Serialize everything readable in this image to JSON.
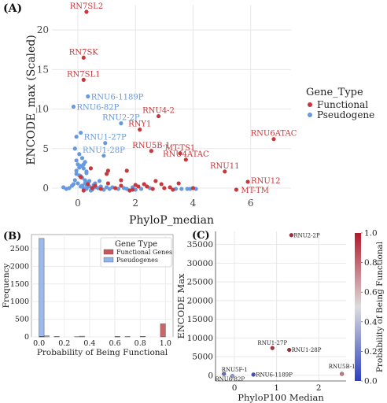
{
  "chart_data": [
    {
      "panel_label": "(A)",
      "type": "scatter",
      "xlabel": "PhyloP_median",
      "ylabel": "ENCODE_max (Scaled)",
      "xlim": [
        -0.9,
        7.4
      ],
      "ylim": [
        -0.9,
        23.2
      ],
      "xticks": [
        0,
        2,
        4,
        6
      ],
      "yticks": [
        0,
        5,
        10,
        15,
        20
      ],
      "grid": true,
      "legend": {
        "title": "Gene_Type",
        "position": "right",
        "entries": [
          {
            "name": "Functional",
            "color": "#c8373b"
          },
          {
            "name": "Pseudogene",
            "color": "#6699dd"
          }
        ]
      },
      "labels": [
        {
          "text": "RN7SL2",
          "x": 0.3,
          "y": 22.3,
          "series": "Functional"
        },
        {
          "text": "RN7SK",
          "x": 0.2,
          "y": 16.5,
          "series": "Functional"
        },
        {
          "text": "RN7SL1",
          "x": 0.2,
          "y": 13.7,
          "series": "Functional"
        },
        {
          "text": "RNU6-1189P",
          "x": 0.35,
          "y": 11.6,
          "series": "Pseudogene"
        },
        {
          "text": "RNU6-82P",
          "x": -0.15,
          "y": 10.3,
          "series": "Pseudogene"
        },
        {
          "text": "RNU4-2",
          "x": 2.8,
          "y": 9.1,
          "series": "Functional"
        },
        {
          "text": "RNU2-2P",
          "x": 1.5,
          "y": 8.2,
          "series": "Pseudogene"
        },
        {
          "text": "RNY1",
          "x": 2.15,
          "y": 7.4,
          "series": "Functional"
        },
        {
          "text": "RNU6ATAC",
          "x": 6.8,
          "y": 6.2,
          "series": "Functional"
        },
        {
          "text": "RNU1-27P",
          "x": 0.95,
          "y": 5.7,
          "series": "Pseudogene"
        },
        {
          "text": "RNU5B-1",
          "x": 2.55,
          "y": 4.7,
          "series": "Functional"
        },
        {
          "text": "MT-TS1",
          "x": 3.55,
          "y": 4.4,
          "series": "Functional"
        },
        {
          "text": "RNU1-28P",
          "x": 0.9,
          "y": 4.1,
          "series": "Pseudogene"
        },
        {
          "text": "RNU4ATAC",
          "x": 3.75,
          "y": 3.6,
          "series": "Functional"
        },
        {
          "text": "RNU11",
          "x": 5.1,
          "y": 2.1,
          "series": "Functional"
        },
        {
          "text": "RNU12",
          "x": 5.9,
          "y": 0.8,
          "series": "Functional"
        },
        {
          "text": "MT-TM",
          "x": 5.5,
          "y": -0.2,
          "series": "Functional"
        }
      ],
      "series": [
        {
          "name": "Functional",
          "color": "#c8373b",
          "points": [
            [
              0.3,
              22.3
            ],
            [
              0.2,
              16.5
            ],
            [
              0.2,
              13.7
            ],
            [
              2.8,
              9.1
            ],
            [
              2.15,
              7.4
            ],
            [
              6.8,
              6.2
            ],
            [
              2.55,
              4.7
            ],
            [
              3.55,
              4.4
            ],
            [
              3.75,
              3.6
            ],
            [
              5.1,
              2.1
            ],
            [
              5.9,
              0.8
            ],
            [
              5.5,
              -0.2
            ],
            [
              1.0,
              1.8
            ],
            [
              1.05,
              2.2
            ],
            [
              1.05,
              0.6
            ],
            [
              1.7,
              2.2
            ],
            [
              1.5,
              0.3
            ],
            [
              1.9,
              -0.2
            ],
            [
              2.1,
              0.2
            ],
            [
              2.3,
              0.5
            ],
            [
              2.6,
              -0.1
            ],
            [
              2.9,
              0.5
            ],
            [
              3.2,
              0.1
            ],
            [
              3.3,
              -0.2
            ],
            [
              0.35,
              0.5
            ],
            [
              0.45,
              2.5
            ],
            [
              0.1,
              1.4
            ],
            [
              0.5,
              0.0
            ],
            [
              0.8,
              -0.1
            ],
            [
              1.3,
              0.0
            ],
            [
              1.5,
              1.0
            ],
            [
              2.0,
              0.4
            ],
            [
              2.4,
              0.2
            ],
            [
              3.0,
              0.0
            ],
            [
              3.5,
              0.6
            ],
            [
              4.0,
              0.0
            ],
            [
              0.2,
              -0.3
            ],
            [
              0.6,
              0.3
            ],
            [
              1.8,
              -0.3
            ],
            [
              2.7,
              0.9
            ]
          ]
        },
        {
          "name": "Pseudogene",
          "color": "#6699dd",
          "points": [
            [
              0.35,
              11.6
            ],
            [
              -0.15,
              10.3
            ],
            [
              1.5,
              8.2
            ],
            [
              0.95,
              5.7
            ],
            [
              0.9,
              4.1
            ],
            [
              -0.05,
              6.5
            ],
            [
              0.1,
              7.0
            ],
            [
              -0.1,
              5.0
            ],
            [
              0.05,
              4.3
            ],
            [
              0.15,
              3.8
            ],
            [
              0.25,
              3.3
            ],
            [
              -0.05,
              3.5
            ],
            [
              0.1,
              2.8
            ],
            [
              0.2,
              2.5
            ],
            [
              0.3,
              1.9
            ],
            [
              -0.05,
              2.2
            ],
            [
              0.05,
              1.6
            ],
            [
              0.15,
              1.3
            ],
            [
              0.25,
              1.0
            ],
            [
              0.35,
              0.7
            ],
            [
              -0.1,
              1.0
            ],
            [
              0.0,
              0.6
            ],
            [
              0.1,
              0.2
            ],
            [
              0.2,
              0.0
            ],
            [
              0.3,
              -0.1
            ],
            [
              0.4,
              0.2
            ],
            [
              -0.2,
              0.3
            ],
            [
              -0.3,
              0.0
            ],
            [
              -0.4,
              -0.1
            ],
            [
              -0.5,
              0.1
            ],
            [
              0.5,
              -0.2
            ],
            [
              0.6,
              0.1
            ],
            [
              0.7,
              0.0
            ],
            [
              0.8,
              0.2
            ],
            [
              0.9,
              -0.2
            ],
            [
              1.0,
              0.1
            ],
            [
              1.1,
              -0.1
            ],
            [
              1.2,
              0.1
            ],
            [
              1.4,
              -0.1
            ],
            [
              1.6,
              0.0
            ],
            [
              1.7,
              -0.1
            ],
            [
              1.9,
              0.1
            ],
            [
              2.0,
              -0.2
            ],
            [
              2.2,
              -0.1
            ],
            [
              2.5,
              0.0
            ],
            [
              3.4,
              -0.1
            ],
            [
              3.6,
              -0.1
            ],
            [
              3.8,
              -0.1
            ],
            [
              3.9,
              -0.1
            ],
            [
              4.1,
              -0.1
            ],
            [
              0.45,
              -0.3
            ],
            [
              0.3,
              0.4
            ],
            [
              0.6,
              0.6
            ],
            [
              0.75,
              0.9
            ],
            [
              0.0,
              3.0
            ],
            [
              0.05,
              2.6
            ],
            [
              0.2,
              3.0
            ],
            [
              0.3,
              2.1
            ],
            [
              -0.05,
              1.8
            ],
            [
              0.1,
              1.5
            ],
            [
              0.4,
              0.9
            ],
            [
              0.55,
              0.4
            ],
            [
              -0.15,
              0.5
            ],
            [
              0.25,
              0.6
            ],
            [
              0.15,
              0.3
            ]
          ]
        }
      ]
    },
    {
      "panel_label": "(B)",
      "type": "bar",
      "xlabel": "Probability of Being Functional",
      "ylabel": "Frequency",
      "xlim": [
        -0.06,
        1.06
      ],
      "ylim": [
        0,
        2900
      ],
      "xticks": [
        0.0,
        0.2,
        0.4,
        0.6,
        0.8,
        1.0
      ],
      "xtick_labels": [
        "0.0",
        "0.2",
        "0.4",
        "0.6",
        "0.8",
        "1.0"
      ],
      "yticks": [
        0,
        500,
        1000,
        1500,
        2000,
        2500
      ],
      "grid": true,
      "bin_width": 0.04,
      "legend": {
        "title": "Gene Type",
        "position": "top-right",
        "entries": [
          {
            "name": "Functional Genes",
            "color": "#c8555a"
          },
          {
            "name": "Pseudogenes",
            "color": "#8fb3ea"
          }
        ]
      },
      "series": [
        {
          "name": "Pseudogenes",
          "color": "#8fb3ea",
          "bins": [
            [
              0.0,
              2790
            ],
            [
              0.04,
              30
            ],
            [
              0.12,
              12
            ],
            [
              0.32,
              20
            ],
            [
              0.6,
              8
            ]
          ]
        },
        {
          "name": "Functional Genes",
          "color": "#c8555a",
          "bins": [
            [
              0.0,
              15
            ],
            [
              0.28,
              6
            ],
            [
              0.6,
              12
            ],
            [
              0.68,
              10
            ],
            [
              0.8,
              15
            ],
            [
              0.96,
              370
            ]
          ]
        }
      ]
    },
    {
      "panel_label": "(C)",
      "type": "scatter",
      "xlabel": "PhyloP100 Median",
      "ylabel": "ENCODE Max",
      "xlim": [
        -0.45,
        2.65
      ],
      "ylim": [
        -1500,
        38500
      ],
      "xticks": [
        0,
        1,
        2
      ],
      "yticks": [
        0,
        5000,
        10000,
        15000,
        20000,
        25000,
        30000,
        35000
      ],
      "grid": true,
      "colorbar": {
        "label": "Probability of Being Functional",
        "ticks": [
          "0.0",
          "0.2",
          "0.4",
          "0.6",
          "0.8",
          "1.0"
        ],
        "low_color": "#2b3fbf",
        "mid_color": "#dddddd",
        "high_color": "#b2182b"
      },
      "points": [
        {
          "label": "RNU2-2P",
          "x": 1.35,
          "y": 37500,
          "p": 0.97
        },
        {
          "label": "RNU1-27P",
          "x": 0.9,
          "y": 7300,
          "p": 0.95
        },
        {
          "label": "RNU1-28P",
          "x": 1.3,
          "y": 6800,
          "p": 0.97
        },
        {
          "label": "RNU5F-1",
          "x": -0.25,
          "y": 400,
          "p": 0.15
        },
        {
          "label": "RNU6-82P",
          "x": -0.05,
          "y": -200,
          "p": 0.3
        },
        {
          "label": "RNU6-1189P",
          "x": 0.45,
          "y": 200,
          "p": 0.05
        },
        {
          "label": "RNU5B-1",
          "x": 2.55,
          "y": 400,
          "p": 0.75
        }
      ]
    }
  ]
}
